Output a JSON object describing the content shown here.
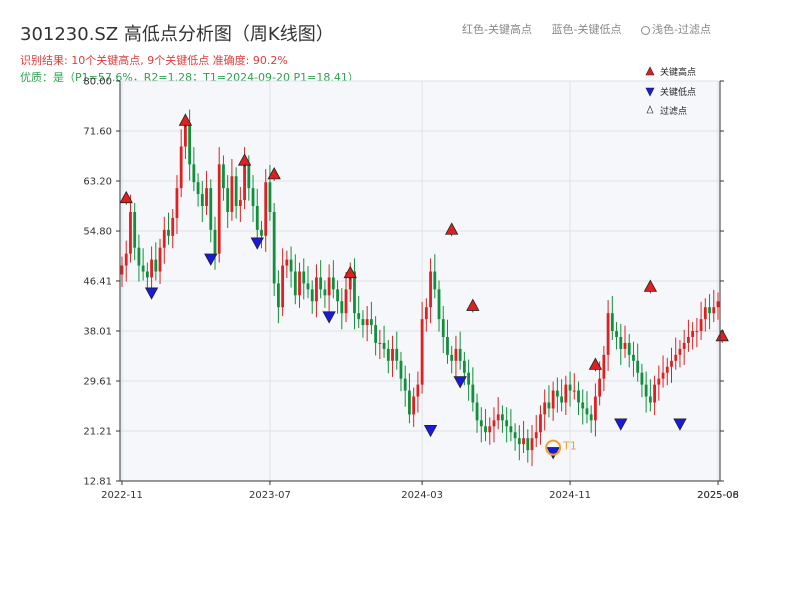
{
  "header": {
    "title": "301230.SZ 高低点分析图（周K线图）",
    "line1": "识别结果: 10个关键高点, 9个关键低点 准确度: 90.2%",
    "line2": "优质：是（P1=57.6%，R2=1.28；T1=2024-09-20 P1=18.41）",
    "legend_red": "红色-关键高点",
    "legend_blue": "蓝色-关键低点",
    "legend_light": "浅色-过滤点"
  },
  "colors": {
    "up": "#e02020",
    "down": "#10903a",
    "high": "#e02020",
    "low": "#1a1adc",
    "t1": "#f0a030",
    "plot_bg": "#f5f7fa",
    "grid": "#dde3ea"
  },
  "chart_data": {
    "type": "candlestick",
    "ylim": [
      12.81,
      80.0
    ],
    "yticks": [
      "12.81",
      "21.21",
      "29.61",
      "38.01",
      "46.41",
      "54.80",
      "63.20",
      "71.60",
      "80.00"
    ],
    "xticks": [
      {
        "i": 0,
        "label": "2022-11"
      },
      {
        "i": 35,
        "label": "2023-07"
      },
      {
        "i": 71,
        "label": "2024-03"
      },
      {
        "i": 106,
        "label": "2024-11"
      },
      {
        "i": 141,
        "label": "2025-06"
      },
      {
        "i": 141,
        "label": "2025-08"
      }
    ],
    "closes": [
      49,
      51,
      58,
      52,
      49,
      48,
      47,
      50,
      48,
      52,
      55,
      54,
      57,
      62,
      69,
      73,
      66,
      63,
      61,
      59,
      62,
      55,
      51,
      66,
      62,
      58,
      64,
      59,
      60,
      66,
      62,
      59,
      55,
      54,
      63,
      58,
      46,
      42,
      49,
      50,
      48,
      44,
      48,
      46,
      45,
      43,
      47,
      45,
      44,
      47,
      45,
      43,
      41,
      45,
      48,
      41,
      40,
      39,
      40,
      39,
      36,
      36,
      35,
      33,
      35,
      33,
      30,
      28,
      24,
      27,
      29,
      40,
      42,
      48,
      45,
      40,
      37,
      34,
      33,
      35,
      33,
      31,
      29,
      26,
      23,
      22,
      21,
      22,
      23,
      24,
      23,
      22,
      21,
      20,
      19,
      20,
      18,
      20,
      21,
      24,
      26,
      25,
      28,
      27,
      26,
      29,
      28,
      28,
      26,
      25,
      24,
      23,
      27,
      30,
      34,
      41,
      38,
      37,
      35,
      36,
      34,
      33,
      31,
      29,
      27,
      26,
      29,
      30,
      31,
      32,
      33,
      34,
      35,
      36,
      37,
      38,
      38,
      40,
      42,
      41,
      42,
      43
    ],
    "key_highs": [
      {
        "i": 1,
        "v": 60.4
      },
      {
        "i": 15,
        "v": 73.4
      },
      {
        "i": 29,
        "v": 66.7
      },
      {
        "i": 36,
        "v": 64.4
      },
      {
        "i": 54,
        "v": 47.8
      },
      {
        "i": 78,
        "v": 55.1
      },
      {
        "i": 83,
        "v": 42.3
      },
      {
        "i": 112,
        "v": 32.4
      },
      {
        "i": 125,
        "v": 45.5
      },
      {
        "i": 142,
        "v": 37.2
      }
    ],
    "key_lows": [
      {
        "i": 7,
        "v": 44.4
      },
      {
        "i": 21,
        "v": 50.1
      },
      {
        "i": 32,
        "v": 52.8
      },
      {
        "i": 49,
        "v": 40.4
      },
      {
        "i": 73,
        "v": 21.3
      },
      {
        "i": 80,
        "v": 29.5
      },
      {
        "i": 102,
        "v": 17.6
      },
      {
        "i": 118,
        "v": 22.4
      },
      {
        "i": 132,
        "v": 22.4
      }
    ],
    "t1": {
      "i": 102,
      "v": 18.41,
      "label": "T1"
    },
    "legend": [
      "关键高点",
      "关键低点",
      "过滤点"
    ]
  }
}
